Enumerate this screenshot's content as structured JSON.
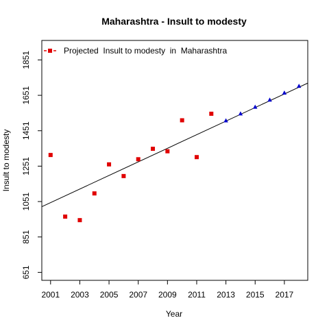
{
  "chart_data": {
    "type": "scatter",
    "title": "Maharashtra  -  Insult to modesty",
    "xlabel": "Year",
    "ylabel": "Insult to modesty",
    "xlim": [
      2000.4,
      2018.6
    ],
    "ylim": [
      606,
      1961
    ],
    "x_ticks": [
      2001,
      2003,
      2005,
      2007,
      2009,
      2011,
      2013,
      2015,
      2017
    ],
    "y_ticks": [
      651,
      851,
      1051,
      1251,
      1451,
      1651,
      1851
    ],
    "grid": false,
    "legend_position": "top-left",
    "legend_label": "Projected  Insult to modesty  in  Maharashtra",
    "trend_line": {
      "x": [
        2000.4,
        2018.6
      ],
      "y": [
        1022,
        1720
      ]
    },
    "series": [
      {
        "role": "actual",
        "marker": "square",
        "color": "#e00000",
        "x": [
          2001,
          2002,
          2003,
          2004,
          2005,
          2006,
          2007,
          2008,
          2009,
          2010,
          2011,
          2012
        ],
        "y": [
          1314,
          966,
          946,
          1097,
          1261,
          1195,
          1290,
          1349,
          1335,
          1510,
          1302,
          1547
        ]
      },
      {
        "role": "projected",
        "marker": "triangle",
        "color": "#0000cc",
        "x": [
          2013,
          2014,
          2015,
          2016,
          2017,
          2018
        ],
        "y": [
          1508,
          1547,
          1585,
          1625,
          1665,
          1703
        ]
      }
    ]
  }
}
